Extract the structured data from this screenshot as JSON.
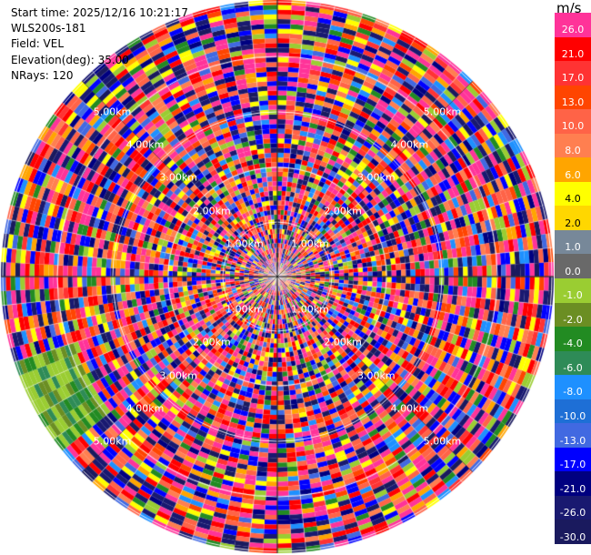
{
  "header": {
    "start_time": "Start time: 2025/12/16 10:21:17",
    "instrument": "WLS200s-181",
    "field": "Field: VEL",
    "elevation": "Elevation(deg): 35.00",
    "nrays": "NRays: 120"
  },
  "colorbar": {
    "unit": "m/s",
    "levels": [
      {
        "label": "26.0",
        "color": "#ff3399"
      },
      {
        "label": "21.0",
        "color": "#ff0000"
      },
      {
        "label": "17.0",
        "color": "#ff3333"
      },
      {
        "label": "13.0",
        "color": "#ff4500"
      },
      {
        "label": "10.0",
        "color": "#ff6347"
      },
      {
        "label": "8.0",
        "color": "#ff7f50"
      },
      {
        "label": "6.0",
        "color": "#ffa500"
      },
      {
        "label": "4.0",
        "color": "#ffff00"
      },
      {
        "label": "2.0",
        "color": "#ffd700"
      },
      {
        "label": "1.0",
        "color": "#778899"
      },
      {
        "label": "0.0",
        "color": "#696969"
      },
      {
        "label": "-1.0",
        "color": "#9acd32"
      },
      {
        "label": "-2.0",
        "color": "#6b8e23"
      },
      {
        "label": "-4.0",
        "color": "#228b22"
      },
      {
        "label": "-6.0",
        "color": "#2e8b57"
      },
      {
        "label": "-8.0",
        "color": "#1e90ff"
      },
      {
        "label": "-10.0",
        "color": "#1e6fd6"
      },
      {
        "label": "-13.0",
        "color": "#4169e1"
      },
      {
        "label": "-17.0",
        "color": "#0000ff"
      },
      {
        "label": "-21.0",
        "color": "#000080"
      },
      {
        "label": "-26.0",
        "color": "#191970"
      },
      {
        "label": "-30.0",
        "color": "#1a1a5e"
      }
    ]
  },
  "rings": [
    {
      "label": "1.00km"
    },
    {
      "label": "2.00km"
    },
    {
      "label": "3.00km"
    },
    {
      "label": "4.00km"
    },
    {
      "label": "5.00km"
    }
  ]
}
